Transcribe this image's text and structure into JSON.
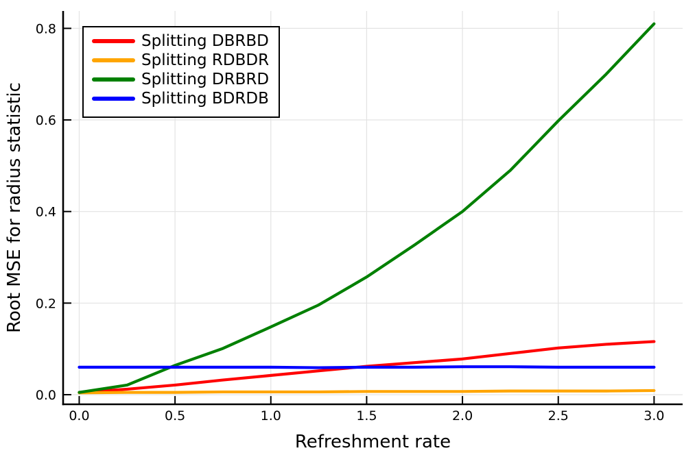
{
  "figure": {
    "background": "#ffffff",
    "grid_color": "#e3e3e3",
    "axis_color": "#000000",
    "text_color": "#000000"
  },
  "chart_data": {
    "type": "line",
    "title": "",
    "xlabel": "Refreshment rate",
    "ylabel": "Root MSE for radius statistic",
    "xlim": [
      -0.084,
      3.149
    ],
    "ylim": [
      -0.021,
      0.838
    ],
    "grid": true,
    "legend_position": "top-left",
    "x": [
      0.0,
      0.25,
      0.5,
      0.75,
      1.0,
      1.25,
      1.5,
      1.75,
      2.0,
      2.25,
      2.5,
      2.75,
      3.0
    ],
    "series": [
      {
        "name": "Splitting DBRBD",
        "color": "#ff0000",
        "values": [
          0.005,
          0.012,
          0.021,
          0.032,
          0.042,
          0.052,
          0.062,
          0.07,
          0.078,
          0.09,
          0.102,
          0.11,
          0.116
        ]
      },
      {
        "name": "Splitting RDBDR",
        "color": "#ffa500",
        "values": [
          0.004,
          0.005,
          0.005,
          0.006,
          0.006,
          0.006,
          0.007,
          0.007,
          0.007,
          0.008,
          0.008,
          0.008,
          0.009
        ]
      },
      {
        "name": "Splitting DRBRD",
        "color": "#008000",
        "values": [
          0.005,
          0.021,
          0.064,
          0.101,
          0.148,
          0.196,
          0.257,
          0.327,
          0.4,
          0.49,
          0.598,
          0.7,
          0.81
        ]
      },
      {
        "name": "Splitting BDRDB",
        "color": "#0000ff",
        "values": [
          0.06,
          0.06,
          0.06,
          0.06,
          0.06,
          0.059,
          0.06,
          0.06,
          0.061,
          0.061,
          0.06,
          0.06,
          0.06
        ]
      }
    ],
    "xticks": {
      "values": [
        0.0,
        0.5,
        1.0,
        1.5,
        2.0,
        2.5,
        3.0
      ],
      "labels": [
        "0.0",
        "0.5",
        "1.0",
        "1.5",
        "2.0",
        "2.5",
        "3.0"
      ]
    },
    "yticks": {
      "values": [
        0.0,
        0.2,
        0.4,
        0.6,
        0.8
      ],
      "labels": [
        "0.0",
        "0.2",
        "0.4",
        "0.6",
        "0.8"
      ]
    }
  }
}
